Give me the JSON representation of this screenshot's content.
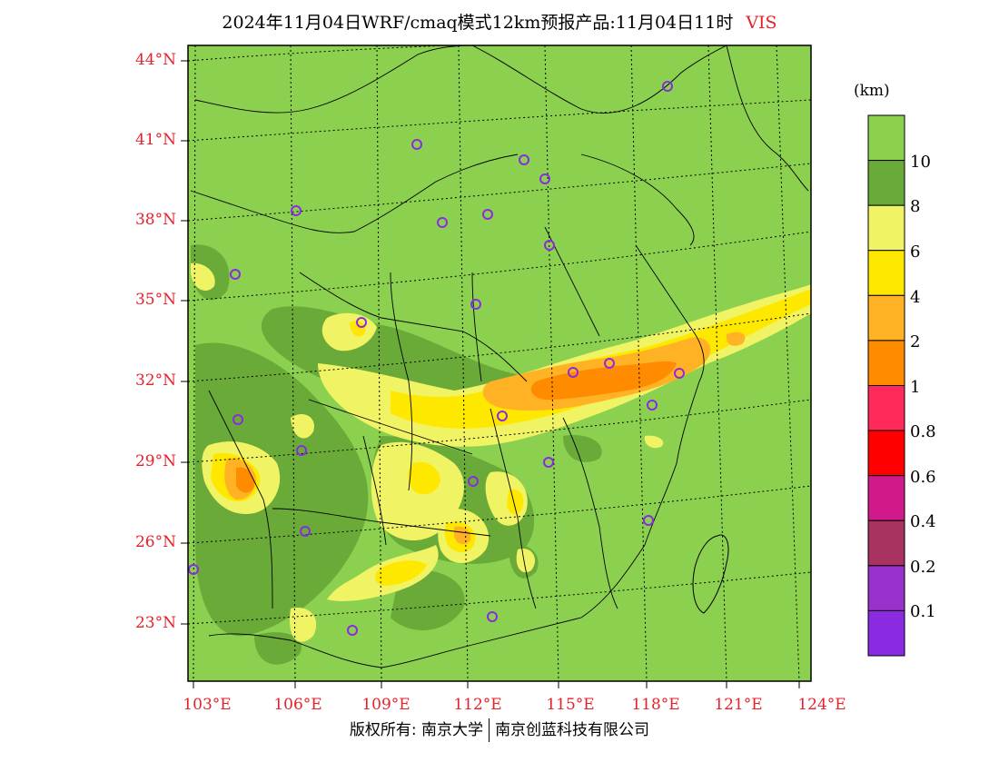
{
  "title": {
    "main": "2024年11月04日WRF/cmaq模式12km预报产品:11月04日11时",
    "variable": "VIS"
  },
  "lat_labels": [
    "44°N",
    "41°N",
    "38°N",
    "35°N",
    "32°N",
    "29°N",
    "26°N",
    "23°N"
  ],
  "lon_labels": [
    "103°E",
    "106°E",
    "109°E",
    "112°E",
    "115°E",
    "118°E",
    "121°E",
    "124°E"
  ],
  "colorbar": {
    "unit": "(km)",
    "labels": [
      "10",
      "8",
      "6",
      "4",
      "2",
      "1",
      "0.8",
      "0.6",
      "0.4",
      "0.2",
      "0.1"
    ],
    "colors": [
      "#8cd050",
      "#6aaa38",
      "#f0f464",
      "#ffe800",
      "#ffb224",
      "#ff8c00",
      "#ff2a5a",
      "#ff0000",
      "#d01a8a",
      "#a83260",
      "#9932cc",
      "#8a2be2"
    ]
  },
  "footer": {
    "left": "版权所有: 南京大学",
    "right": "南京创蓝科技有限公司"
  }
}
